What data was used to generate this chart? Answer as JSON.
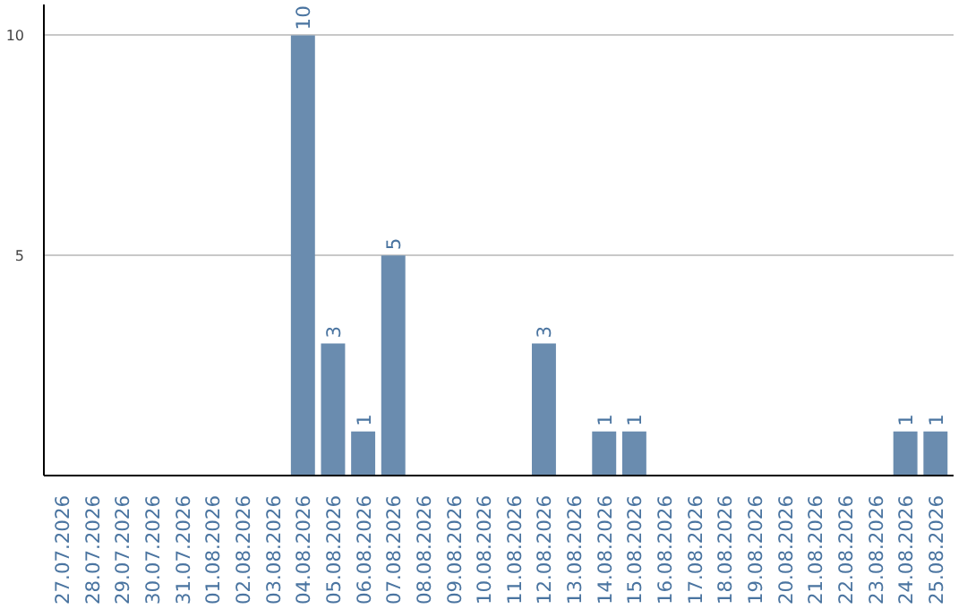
{
  "chart_data": {
    "type": "bar",
    "categories": [
      "27.07.2026",
      "28.07.2026",
      "29.07.2026",
      "30.07.2026",
      "31.07.2026",
      "01.08.2026",
      "02.08.2026",
      "03.08.2026",
      "04.08.2026",
      "05.08.2026",
      "06.08.2026",
      "07.08.2026",
      "08.08.2026",
      "09.08.2026",
      "10.08.2026",
      "11.08.2026",
      "12.08.2026",
      "13.08.2026",
      "14.08.2026",
      "15.08.2026",
      "16.08.2026",
      "17.08.2026",
      "18.08.2026",
      "19.08.2026",
      "20.08.2026",
      "21.08.2026",
      "22.08.2026",
      "23.08.2026",
      "24.08.2026",
      "25.08.2026"
    ],
    "values": [
      0,
      0,
      0,
      0,
      0,
      0,
      0,
      0,
      10,
      3,
      1,
      5,
      0,
      0,
      0,
      0,
      3,
      0,
      1,
      1,
      0,
      0,
      0,
      0,
      0,
      0,
      0,
      0,
      1,
      1
    ],
    "value_labels": [
      null,
      null,
      null,
      null,
      null,
      null,
      null,
      null,
      "10",
      "3",
      "1",
      "5",
      null,
      null,
      null,
      null,
      "3",
      null,
      "1",
      "1",
      null,
      null,
      null,
      null,
      null,
      null,
      null,
      null,
      "1",
      "1"
    ],
    "color": "#6a8caf",
    "ylim": [
      0,
      10.7
    ],
    "yticks": [
      5,
      10
    ],
    "grid": "y"
  }
}
